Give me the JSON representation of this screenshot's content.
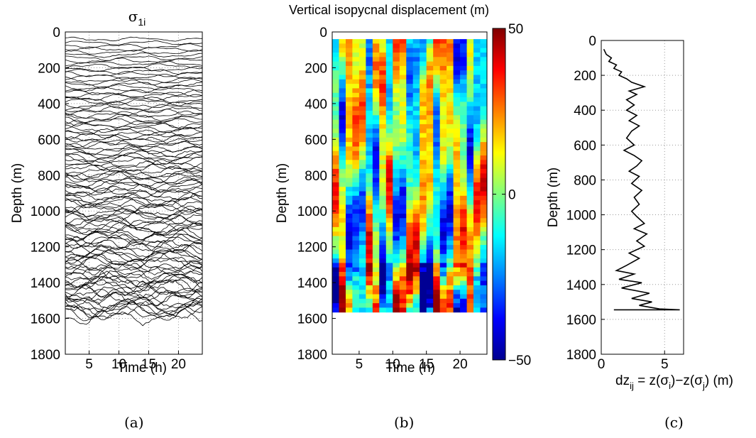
{
  "chart_data": [
    {
      "id": "a",
      "type": "line",
      "title": "σ",
      "title_subscript": "1i",
      "xlabel": "Time (h)",
      "ylabel": "Depth (m)",
      "xlim": [
        1,
        24
      ],
      "ylim": [
        0,
        1800
      ],
      "y_reversed": true,
      "xticks": [
        5,
        10,
        15,
        20
      ],
      "yticks": [
        0,
        200,
        400,
        600,
        800,
        1000,
        1200,
        1400,
        1600,
        1800
      ],
      "grid": true,
      "line_color": "#000000",
      "isopycnal_depth_range": [
        40,
        1590
      ],
      "series_count": 120,
      "caption": "(a)"
    },
    {
      "id": "b",
      "type": "heatmap",
      "title": "Vertical isopycnal displacement (m)",
      "xlabel": "Time (h)",
      "ylabel": "Depth (m)",
      "xlim": [
        1,
        24
      ],
      "ylim": [
        0,
        1800
      ],
      "y_reversed": true,
      "xticks": [
        5,
        10,
        15,
        20
      ],
      "yticks": [
        0,
        200,
        400,
        600,
        800,
        1000,
        1200,
        1400,
        1600,
        1800
      ],
      "colorbar": {
        "range": [
          -50,
          50
        ],
        "ticks": [
          50,
          0,
          -50
        ],
        "tick_labels": [
          "50",
          "0",
          "−50"
        ],
        "colormap": "jet"
      },
      "data_depth_range": [
        40,
        1565
      ],
      "caption": "(b)"
    },
    {
      "id": "c",
      "type": "line",
      "xlabel_parts": [
        "dz",
        "ij",
        " = z(σ",
        "i",
        ")−z(σ",
        "j",
        ") (m)"
      ],
      "ylabel": "Depth (m)",
      "xlim": [
        0,
        6.5
      ],
      "ylim": [
        0,
        1800
      ],
      "y_reversed": true,
      "xticks": [
        0,
        5
      ],
      "yticks": [
        0,
        200,
        400,
        600,
        800,
        1000,
        1200,
        1400,
        1600,
        1800
      ],
      "grid": true,
      "line_color": "#000000",
      "profile": [
        [
          0.2,
          50
        ],
        [
          0.4,
          80
        ],
        [
          0.8,
          100
        ],
        [
          0.6,
          120
        ],
        [
          1.2,
          140
        ],
        [
          1.0,
          160
        ],
        [
          1.6,
          180
        ],
        [
          1.4,
          200
        ],
        [
          2.0,
          220
        ],
        [
          2.4,
          240
        ],
        [
          3.4,
          265
        ],
        [
          2.2,
          290
        ],
        [
          2.8,
          310
        ],
        [
          2.0,
          340
        ],
        [
          2.6,
          370
        ],
        [
          2.0,
          400
        ],
        [
          2.8,
          430
        ],
        [
          2.2,
          460
        ],
        [
          3.0,
          490
        ],
        [
          2.4,
          520
        ],
        [
          2.0,
          560
        ],
        [
          2.6,
          600
        ],
        [
          1.8,
          630
        ],
        [
          2.6,
          660
        ],
        [
          3.2,
          690
        ],
        [
          2.8,
          720
        ],
        [
          2.2,
          750
        ],
        [
          3.0,
          780
        ],
        [
          2.4,
          820
        ],
        [
          3.2,
          860
        ],
        [
          2.6,
          900
        ],
        [
          3.0,
          940
        ],
        [
          2.4,
          980
        ],
        [
          2.8,
          1010
        ],
        [
          3.4,
          1050
        ],
        [
          2.6,
          1080
        ],
        [
          3.6,
          1110
        ],
        [
          2.8,
          1150
        ],
        [
          3.4,
          1180
        ],
        [
          2.2,
          1220
        ],
        [
          3.0,
          1250
        ],
        [
          2.0,
          1290
        ],
        [
          1.2,
          1320
        ],
        [
          2.6,
          1340
        ],
        [
          1.4,
          1370
        ],
        [
          3.2,
          1390
        ],
        [
          1.6,
          1420
        ],
        [
          3.8,
          1450
        ],
        [
          2.4,
          1480
        ],
        [
          4.0,
          1500
        ],
        [
          3.0,
          1520
        ],
        [
          4.6,
          1540
        ],
        [
          6.2,
          1545
        ],
        [
          1.0,
          1545
        ]
      ],
      "caption": "(c)"
    }
  ]
}
